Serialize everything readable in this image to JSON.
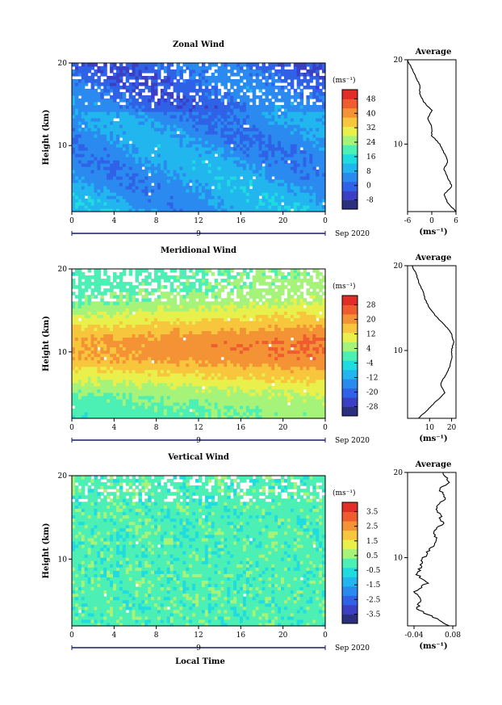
{
  "chart_data": [
    {
      "type": "heatmap",
      "title": "Zonal Wind",
      "ylabel": "Height (km)",
      "ylim": [
        2,
        20
      ],
      "yticks": [
        10,
        20
      ],
      "x_ticks": [
        "0",
        "4",
        "8",
        "12",
        "16",
        "20",
        "0"
      ],
      "x_range_hours": [
        0,
        24
      ],
      "date_label": "9",
      "month_year": "Sep 2020",
      "colorbar": {
        "unit": "(ms⁻¹)",
        "ticks": [
          "48",
          "40",
          "32",
          "24",
          "16",
          "8",
          "0",
          "-8"
        ],
        "levels": [
          -8,
          0,
          8,
          16,
          24,
          32,
          40,
          48
        ],
        "colors": [
          "#2c2e7e",
          "#3b3fc3",
          "#2f62e6",
          "#2a8af0",
          "#22b6ef",
          "#20dbe0",
          "#4cefb4",
          "#a6f37a",
          "#e9f04c",
          "#f7c63c",
          "#f49335",
          "#ef5c2f",
          "#e02d27"
        ]
      },
      "profile": {
        "title": "Average",
        "xlabel": "(ms⁻¹)",
        "xticks": [
          "-6",
          "0",
          "6"
        ],
        "xlim": [
          -6,
          6
        ],
        "height_km": [
          2,
          3,
          4,
          5,
          6,
          7,
          8,
          9,
          10,
          11,
          12,
          13,
          14,
          15,
          16,
          17,
          18,
          19,
          20
        ],
        "values": [
          6,
          4,
          3,
          5,
          4,
          3,
          4,
          3,
          2,
          0,
          0,
          -1,
          0,
          -2,
          -3,
          -3,
          -4,
          -5,
          -6
        ]
      }
    },
    {
      "type": "heatmap",
      "title": "Meridional Wind",
      "ylabel": "Height (km)",
      "ylim": [
        2,
        20
      ],
      "yticks": [
        10,
        20
      ],
      "x_ticks": [
        "0",
        "4",
        "8",
        "12",
        "16",
        "20",
        "0"
      ],
      "x_range_hours": [
        0,
        24
      ],
      "date_label": "9",
      "month_year": "Sep 2020",
      "colorbar": {
        "unit": "(ms⁻¹)",
        "ticks": [
          "28",
          "20",
          "12",
          "4",
          "-4",
          "-12",
          "-20",
          "-28"
        ],
        "levels": [
          -28,
          -20,
          -12,
          -4,
          4,
          12,
          20,
          28
        ],
        "colors": [
          "#2c2e7e",
          "#3b3fc3",
          "#2f62e6",
          "#2a8af0",
          "#22b6ef",
          "#20dbe0",
          "#4cefb4",
          "#a6f37a",
          "#e9f04c",
          "#f7c63c",
          "#f49335",
          "#ef5c2f",
          "#e02d27"
        ]
      },
      "profile": {
        "title": "Average",
        "xlabel": "(ms⁻¹)",
        "xticks": [
          "10",
          "20"
        ],
        "xlim": [
          0,
          22
        ],
        "height_km": [
          2,
          3,
          4,
          5,
          6,
          7,
          8,
          9,
          10,
          11,
          12,
          13,
          14,
          15,
          16,
          17,
          18,
          19,
          20
        ],
        "values": [
          5,
          9,
          13,
          17,
          15,
          17,
          19,
          20,
          20,
          21,
          20,
          17,
          13,
          10,
          8,
          7,
          5,
          4,
          2
        ]
      }
    },
    {
      "type": "heatmap",
      "title": "Vertical Wind",
      "ylabel": "Height (km)",
      "ylim": [
        2,
        20
      ],
      "yticks": [
        10,
        20
      ],
      "x_ticks": [
        "0",
        "4",
        "8",
        "12",
        "16",
        "20",
        "0"
      ],
      "x_range_hours": [
        0,
        24
      ],
      "date_label": "9",
      "month_year": "Sep 2020",
      "xlabel": "Local Time",
      "colorbar": {
        "unit": "(ms⁻¹)",
        "ticks": [
          "3.5",
          "2.5",
          "1.5",
          "0.5",
          "-0.5",
          "-1.5",
          "-2.5",
          "-3.5"
        ],
        "levels": [
          -3.5,
          -2.5,
          -1.5,
          -0.5,
          0.5,
          1.5,
          2.5,
          3.5
        ],
        "colors": [
          "#2c2e7e",
          "#3b3fc3",
          "#2f62e6",
          "#2a8af0",
          "#22b6ef",
          "#20dbe0",
          "#4cefb4",
          "#a6f37a",
          "#e9f04c",
          "#f7c63c",
          "#f49335",
          "#ef5c2f",
          "#e02d27"
        ]
      },
      "profile": {
        "title": "Average",
        "xlabel": "(ms⁻¹)",
        "xticks": [
          "-0.04",
          "0.08"
        ],
        "xlim": [
          -0.06,
          0.09
        ],
        "height_km": [
          2,
          3,
          4,
          5,
          6,
          7,
          8,
          9,
          10,
          11,
          12,
          13,
          14,
          15,
          16,
          17,
          18,
          19,
          20
        ],
        "values": [
          0.07,
          0.02,
          -0.03,
          -0.02,
          -0.04,
          0.0,
          -0.03,
          -0.02,
          -0.01,
          0.01,
          0.03,
          0.02,
          0.05,
          0.04,
          0.03,
          0.06,
          0.04,
          0.07,
          0.05
        ]
      }
    }
  ]
}
